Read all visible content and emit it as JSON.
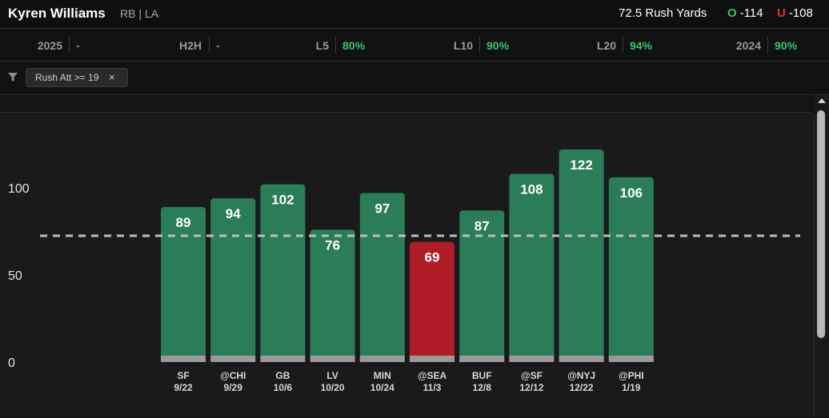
{
  "header": {
    "player_name": "Kyren Williams",
    "player_pos": "RB | LA",
    "prop": "72.5 Rush Yards",
    "over_label": "O",
    "over_odds": "-114",
    "under_label": "U",
    "under_odds": "-108"
  },
  "stats": [
    {
      "label": "2025",
      "value": "-"
    },
    {
      "label": "H2H",
      "value": "-"
    },
    {
      "label": "L5",
      "value": "80%"
    },
    {
      "label": "L10",
      "value": "90%"
    },
    {
      "label": "L20",
      "value": "94%"
    },
    {
      "label": "2024",
      "value": "90%"
    }
  ],
  "filter": {
    "chip_label": "Rush Att >= 19",
    "chip_close": "×"
  },
  "colors": {
    "hit": "#2a7d56",
    "miss": "#b01c28",
    "positive_text": "#3ac56b",
    "under_text": "#e0323c",
    "line": "#bdbdbd"
  },
  "chart_data": {
    "type": "bar",
    "categories": [
      "SF",
      "@CHI",
      "GB",
      "LV",
      "MIN",
      "@SEA",
      "BUF",
      "@SF",
      "@NYJ",
      "@PHI"
    ],
    "dates": [
      "9/22",
      "9/29",
      "10/6",
      "10/20",
      "10/24",
      "11/3",
      "12/8",
      "12/12",
      "12/22",
      "1/19"
    ],
    "values": [
      89,
      94,
      102,
      76,
      97,
      69,
      87,
      108,
      122,
      106
    ],
    "line": 72.5,
    "yticks": [
      0,
      50,
      100
    ],
    "ylim": [
      0,
      122
    ]
  }
}
